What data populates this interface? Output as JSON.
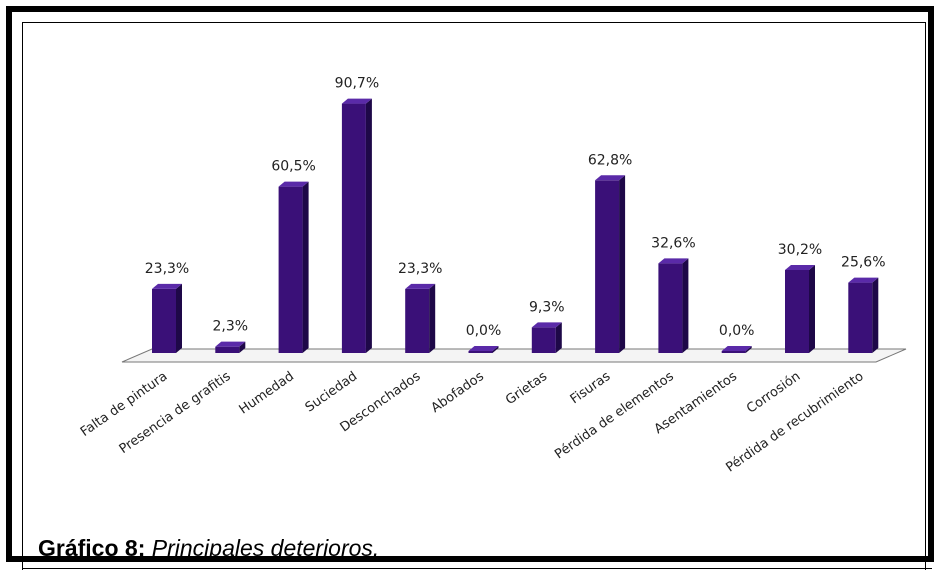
{
  "caption": {
    "label": "Gráfico 8:",
    "text": "Principales deterioros."
  },
  "chart_data": {
    "type": "bar",
    "title": "",
    "xlabel": "",
    "ylabel": "",
    "ylim": [
      0,
      100
    ],
    "grid": false,
    "bar_color": "#3a1078",
    "categories": [
      "Falta de pintura",
      "Presencia de grafitis",
      "Humedad",
      "Suciedad",
      "Desconchados",
      "Abofados",
      "Grietas",
      "Fisuras",
      "Pérdida de elementos",
      "Asentamientos",
      "Corrosión",
      "Pérdida de recubrimiento"
    ],
    "values": [
      23.3,
      2.3,
      60.5,
      90.7,
      23.3,
      0.0,
      9.3,
      62.8,
      32.6,
      0.0,
      30.2,
      25.6
    ],
    "data_labels": [
      "23,3%",
      "2,3%",
      "60,5%",
      "90,7%",
      "23,3%",
      "0,0%",
      "9,3%",
      "62,8%",
      "32,6%",
      "0,0%",
      "30,2%",
      "25,6%"
    ]
  }
}
